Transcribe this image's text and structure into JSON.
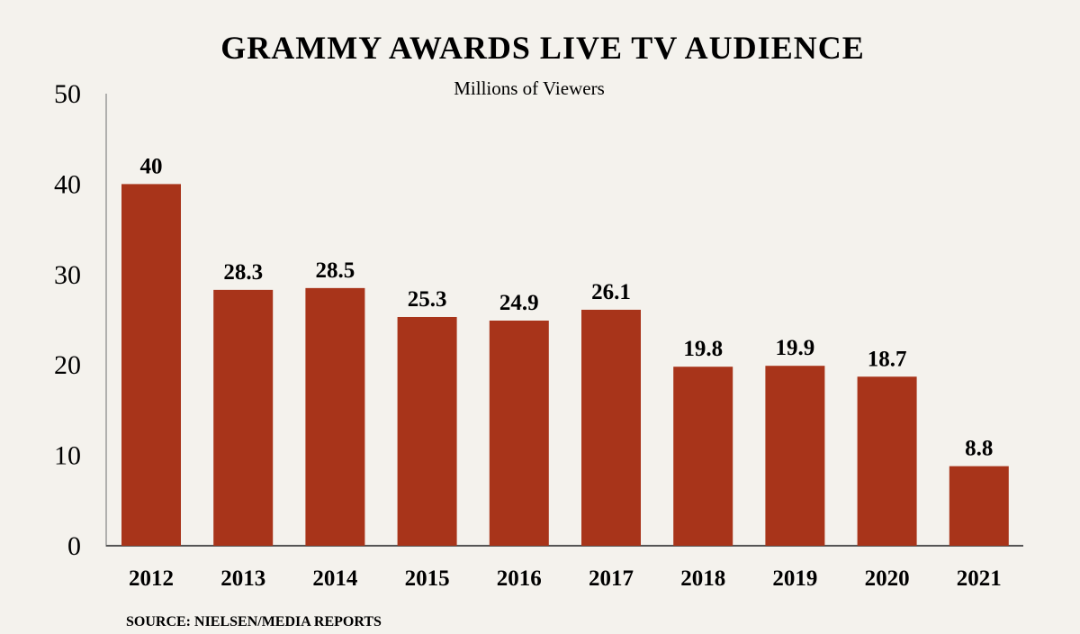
{
  "chart_data": {
    "type": "bar",
    "title": "GRAMMY AWARDS LIVE TV AUDIENCE",
    "subtitle": "Millions of Viewers",
    "categories": [
      "2012",
      "2013",
      "2014",
      "2015",
      "2016",
      "2017",
      "2018",
      "2019",
      "2020",
      "2021"
    ],
    "values": [
      40,
      28.3,
      28.5,
      25.3,
      24.9,
      26.1,
      19.8,
      19.9,
      18.7,
      8.8
    ],
    "data_labels": [
      "40",
      "28.3",
      "28.5",
      "25.3",
      "24.9",
      "26.1",
      "19.8",
      "19.9",
      "18.7",
      "8.8"
    ],
    "y_ticks": [
      "0",
      "10",
      "20",
      "30",
      "40",
      "50"
    ],
    "ylim": [
      0,
      50
    ],
    "grid": false,
    "legend": "none",
    "bar_color": "#a8341a",
    "source": "SOURCE: NIELSEN/MEDIA REPORTS"
  }
}
